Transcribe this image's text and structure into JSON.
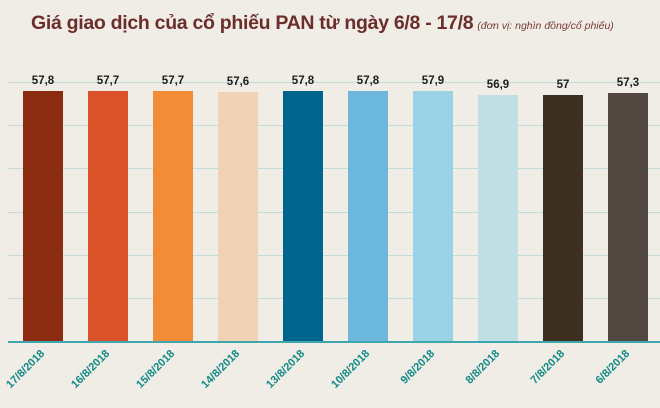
{
  "title": {
    "main": "Giá giao dịch của cổ phiếu PAN từ ngày 6/8 - 17/8",
    "unit": "(đơn vị: nghìn đồng/cổ phiếu)"
  },
  "colors": {
    "background": "#f0ece6",
    "title": "#6b2e2b",
    "gridline": "#c2dcdc",
    "axis": "#3ea7ad",
    "x_label": "#0f8a86"
  },
  "chart_data": {
    "type": "bar",
    "title": "Giá giao dịch của cổ phiếu PAN từ ngày 6/8 - 17/8",
    "subtitle": "(đơn vị: nghìn đồng/cổ phiếu)",
    "xlabel": "",
    "ylabel": "",
    "categories": [
      "17/8/2018",
      "16/8/2018",
      "15/8/2018",
      "14/8/2018",
      "13/8/2018",
      "10/8/2018",
      "9/8/2018",
      "8/8/2018",
      "7/8/2018",
      "6/8/2018"
    ],
    "values": [
      57.8,
      57.7,
      57.7,
      57.6,
      57.8,
      57.8,
      57.9,
      56.9,
      57,
      57.3
    ],
    "value_labels": [
      "57,8",
      "57,7",
      "57,7",
      "57,6",
      "57,8",
      "57,8",
      "57,9",
      "56,9",
      "57",
      "57,3"
    ],
    "bar_colors": [
      "#8b2b0f",
      "#d9522a",
      "#f28c36",
      "#f2d2b4",
      "#00658c",
      "#6cb8dc",
      "#9ad3e6",
      "#c0dfe5",
      "#3e3021",
      "#524842"
    ],
    "grid": true,
    "y_axis_visible": false,
    "legend": null
  }
}
